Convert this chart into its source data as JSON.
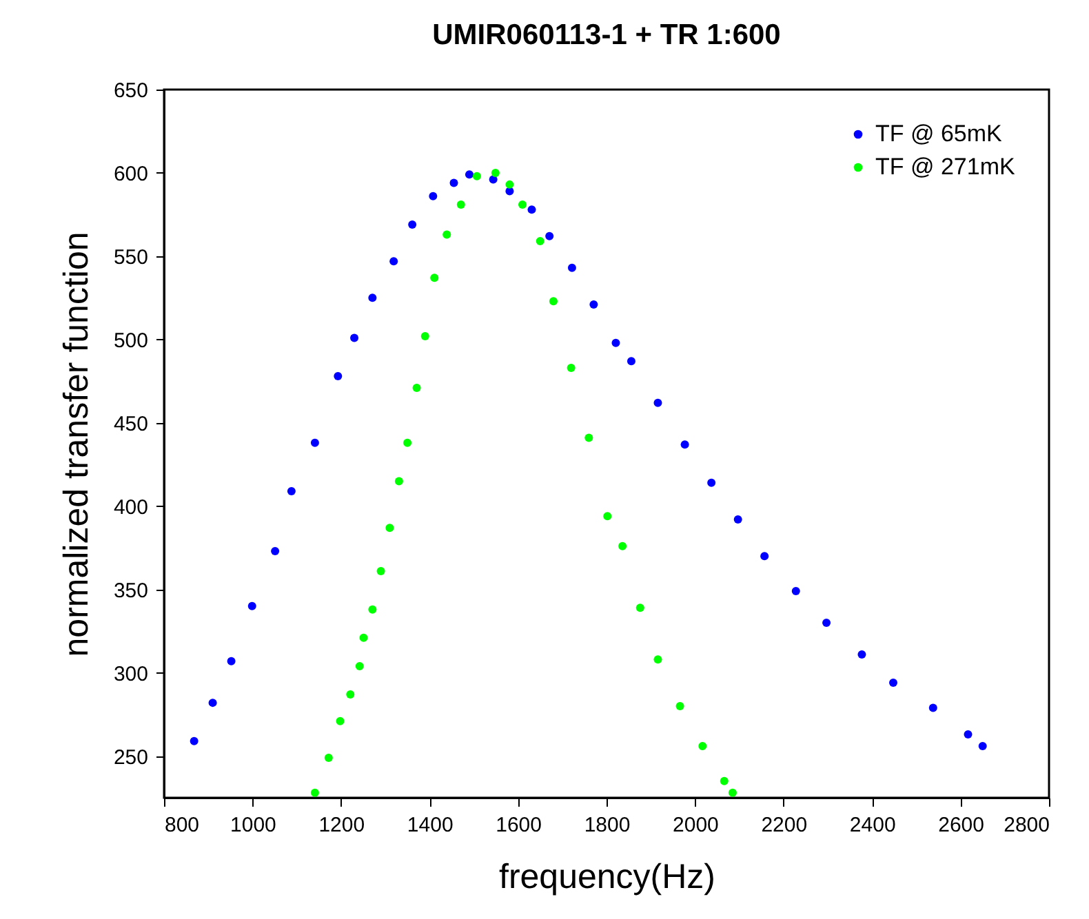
{
  "chart_data": {
    "type": "scatter",
    "title": "UMIR060113-1 + TR 1:600",
    "xlabel": "frequency(Hz)",
    "ylabel": "normalized transfer function",
    "xlim": [
      800,
      2800
    ],
    "xticks": [
      800,
      1000,
      1200,
      1400,
      1600,
      1800,
      2000,
      2200,
      2400,
      2600,
      2800
    ],
    "ylim": [
      225,
      650
    ],
    "yticks": [
      250,
      300,
      350,
      400,
      450,
      500,
      550,
      600,
      650
    ],
    "grid": false,
    "legend": "top right",
    "marker": "circle",
    "series": [
      {
        "name": "TF @ 65mK",
        "color": "#0000ff",
        "x": [
          868,
          910,
          952,
          999,
          1051,
          1088,
          1141,
          1193,
          1230,
          1271,
          1319,
          1361,
          1408,
          1455,
          1490,
          1544,
          1581,
          1631,
          1671,
          1722,
          1771,
          1821,
          1856,
          1916,
          1977,
          2037,
          2097,
          2157,
          2228,
          2297,
          2377,
          2448,
          2538,
          2617,
          2650
        ],
        "values": [
          259,
          282,
          307,
          340,
          373,
          409,
          438,
          478,
          501,
          525,
          547,
          569,
          586,
          594,
          599,
          596,
          589,
          578,
          562,
          543,
          521,
          498,
          487,
          462,
          437,
          414,
          392,
          370,
          349,
          330,
          311,
          294,
          279,
          263,
          256
        ]
      },
      {
        "name": "TF @ 271mK",
        "color": "#00ff00",
        "x": [
          1141,
          1172,
          1198,
          1221,
          1242,
          1251,
          1271,
          1290,
          1310,
          1331,
          1350,
          1371,
          1390,
          1411,
          1439,
          1471,
          1507,
          1549,
          1581,
          1610,
          1650,
          1680,
          1720,
          1760,
          1802,
          1836,
          1876,
          1916,
          1966,
          2017,
          2066,
          2085
        ],
        "values": [
          228,
          249,
          271,
          287,
          304,
          321,
          338,
          361,
          387,
          415,
          438,
          471,
          502,
          537,
          563,
          581,
          598,
          600,
          593,
          581,
          559,
          523,
          483,
          441,
          394,
          376,
          339,
          308,
          280,
          256,
          235,
          228
        ]
      }
    ]
  }
}
